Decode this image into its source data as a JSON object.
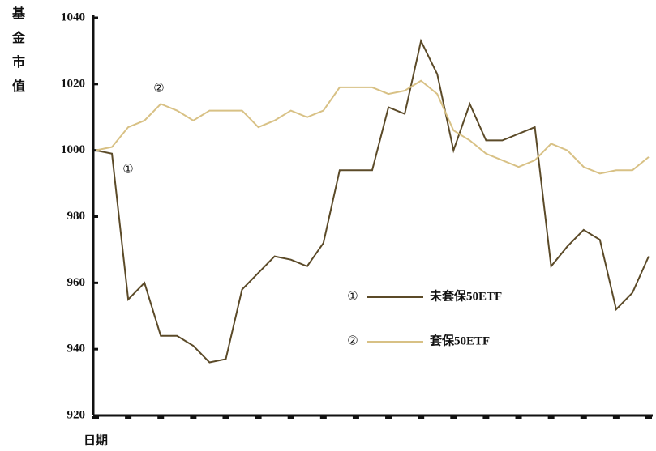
{
  "chart_data": {
    "type": "line",
    "y_label": "基金市值",
    "x_label": "日期",
    "categories": [
      null,
      null,
      null,
      null,
      null,
      null,
      null,
      null,
      null,
      null,
      null,
      null,
      null,
      null,
      null,
      null,
      null,
      null,
      null,
      null,
      null,
      null,
      null,
      null,
      null,
      null,
      null,
      null,
      null,
      null,
      null,
      null,
      null,
      null,
      null
    ],
    "ylim": [
      920,
      1040
    ],
    "yticks": [
      920,
      940,
      960,
      980,
      1000,
      1020,
      1040
    ],
    "series": [
      {
        "name": "未套保50ETF",
        "label": "①",
        "color": "#5b4a28",
        "values": [
          1000,
          999,
          955,
          960,
          944,
          944,
          941,
          936,
          937,
          958,
          963,
          968,
          967,
          965,
          972,
          994,
          994,
          994,
          1013,
          1011,
          1033,
          1023,
          1000,
          1014,
          1003,
          1003,
          1005,
          1007,
          965,
          971,
          976,
          973,
          952,
          957,
          968
        ]
      },
      {
        "name": "套保50ETF",
        "label": "②",
        "color": "#d8c185",
        "values": [
          1000,
          1001,
          1007,
          1009,
          1014,
          1012,
          1009,
          1012,
          1012,
          1012,
          1007,
          1009,
          1012,
          1010,
          1012,
          1019,
          1019,
          1019,
          1017,
          1018,
          1021,
          1017,
          1006,
          1003,
          999,
          997,
          995,
          997,
          1002,
          1000,
          995,
          993,
          994,
          994,
          998
        ]
      }
    ]
  }
}
